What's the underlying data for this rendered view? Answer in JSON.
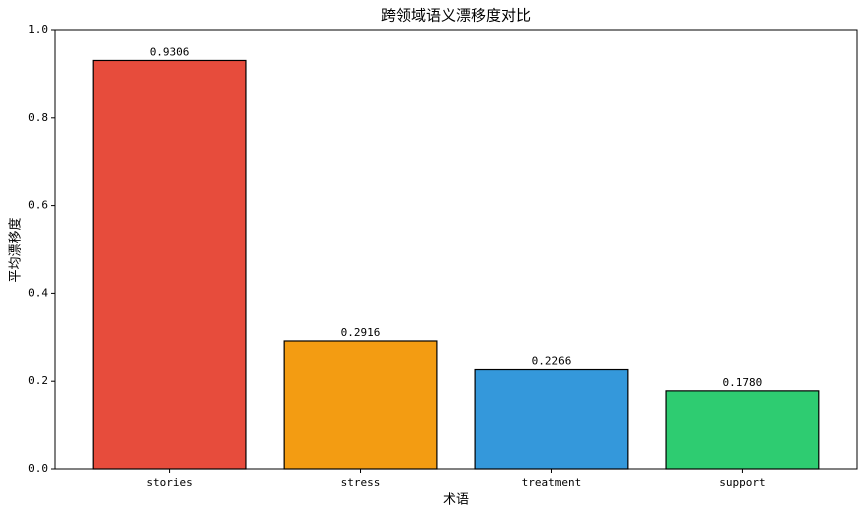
{
  "chart_data": {
    "type": "bar",
    "title": "跨领域语义漂移度对比",
    "xlabel": "术语",
    "ylabel": "平均漂移度",
    "categories": [
      "stories",
      "stress",
      "treatment",
      "support"
    ],
    "values": [
      0.9306,
      0.2916,
      0.2266,
      0.178
    ],
    "value_labels": [
      "0.9306",
      "0.2916",
      "0.2266",
      "0.1780"
    ],
    "colors": [
      "#e74c3c",
      "#f39c12",
      "#3498db",
      "#2ecc71"
    ],
    "ylim": [
      0,
      1
    ],
    "yticks": [
      {
        "value": 0,
        "label": "0.0"
      },
      0.2,
      0.4,
      0.6,
      0.8,
      {
        "value": 1,
        "label": "1.0"
      }
    ],
    "grid": false
  }
}
